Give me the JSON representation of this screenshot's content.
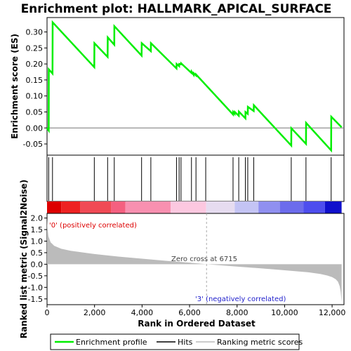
{
  "chart_data": {
    "type": "line",
    "title": "Enrichment plot: HALLMARK_APICAL_SURFACE",
    "x_range": [
      0,
      12500
    ],
    "n_genes": 12400,
    "x_ticks": [
      0,
      2000,
      4000,
      6000,
      8000,
      10000,
      12000
    ],
    "x_tick_labels": [
      "0",
      "2,000",
      "4,000",
      "6,000",
      "8,000",
      "10,000",
      "12,000"
    ],
    "xlabel": "Rank in Ordered Dataset",
    "enrichment_panel": {
      "ylabel": "Enrichment score (ES)",
      "ylim": [
        -0.085,
        0.345
      ],
      "y_ticks": [
        -0.05,
        0.0,
        0.05,
        0.1,
        0.15,
        0.2,
        0.25,
        0.3
      ],
      "y_tick_labels": [
        "-0.05",
        "0.00",
        "0.05",
        "0.10",
        "0.15",
        "0.20",
        "0.25",
        "0.30"
      ],
      "series": [
        {
          "name": "Enrichment profile",
          "color": "#00ee00",
          "x": [
            0,
            70,
            75,
            230,
            235,
            1990,
            1995,
            2550,
            2555,
            2830,
            2835,
            3980,
            3985,
            4370,
            4375,
            5450,
            5455,
            5560,
            5565,
            5640,
            5645,
            6080,
            6085,
            6170,
            6175,
            6270,
            6275,
            7830,
            7835,
            7900,
            7905,
            8070,
            8075,
            8350,
            8355,
            8450,
            8455,
            8700,
            8705,
            10280,
            10285,
            10900,
            10905,
            11960,
            11965,
            12400
          ],
          "y": [
            0.0,
            -0.008,
            0.183,
            0.17,
            0.33,
            0.19,
            0.265,
            0.222,
            0.283,
            0.26,
            0.318,
            0.226,
            0.265,
            0.24,
            0.265,
            0.186,
            0.2,
            0.193,
            0.2,
            0.199,
            0.202,
            0.172,
            0.176,
            0.166,
            0.171,
            0.164,
            0.167,
            0.042,
            0.05,
            0.044,
            0.05,
            0.038,
            0.051,
            0.03,
            0.05,
            0.044,
            0.066,
            0.053,
            0.071,
            -0.055,
            -0.001,
            -0.05,
            0.016,
            -0.07,
            0.035,
            0.002
          ]
        }
      ]
    },
    "hits": [
      70,
      230,
      1990,
      2550,
      2830,
      3980,
      4370,
      5450,
      5560,
      5640,
      6080,
      6270,
      6680,
      7830,
      8070,
      8350,
      8450,
      8700,
      10280,
      10900,
      11960
    ],
    "hits_legend": "Hits",
    "heatbar_colors": [
      "#dd0000",
      "#ee2222",
      "#f04a55",
      "#f46080",
      "#f890b0",
      "#fcc8e0",
      "#e6dcf0",
      "#c4c4f4",
      "#9090f0",
      "#6c6cec",
      "#4e4eee",
      "#1010cc"
    ],
    "heatbar_stops": [
      0,
      600,
      1400,
      2700,
      3300,
      5200,
      6700,
      7900,
      8900,
      9800,
      10800,
      11700,
      12400
    ],
    "metric_panel": {
      "ylabel": "Ranked list metric (Signal2Noise)",
      "ylim": [
        -1.75,
        2.2
      ],
      "y_ticks": [
        -1.5,
        -1.0,
        -0.5,
        0.0,
        0.5,
        1.0,
        1.5,
        2.0
      ],
      "y_tick_labels": [
        "-1.5",
        "-1.0",
        "-0.5",
        "0.0",
        "0.5",
        "1.0",
        "1.5",
        "2.0"
      ],
      "ranked_scores": {
        "name": "Ranking metric scores",
        "x": [
          0,
          20,
          60,
          150,
          300,
          600,
          1000,
          2000,
          3000,
          4000,
          5000,
          6000,
          6715,
          8000,
          9000,
          10000,
          11000,
          11500,
          11800,
          12000,
          12150,
          12250,
          12320,
          12360,
          12400
        ],
        "y": [
          2.0,
          1.55,
          1.2,
          0.95,
          0.8,
          0.67,
          0.58,
          0.44,
          0.33,
          0.24,
          0.15,
          0.07,
          0.0,
          -0.1,
          -0.18,
          -0.26,
          -0.35,
          -0.42,
          -0.49,
          -0.56,
          -0.65,
          -0.76,
          -0.95,
          -1.2,
          -1.62
        ]
      },
      "zero_cross_label": "Zero cross at 6715",
      "zero_cross_x": 6715,
      "pos_label": "'0' (positively correlated)",
      "neg_label": "'3' (negatively correlated)"
    }
  }
}
